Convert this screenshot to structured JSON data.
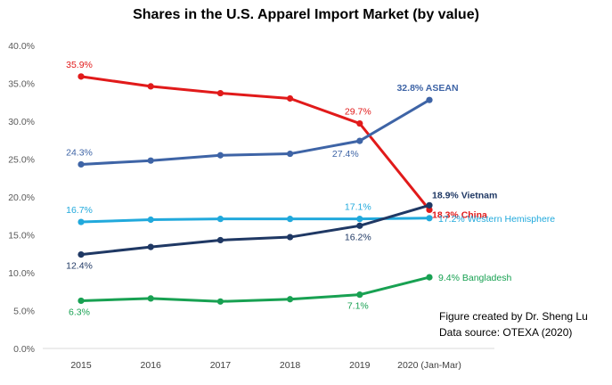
{
  "chart_data": {
    "type": "line",
    "title": "Shares in the U.S. Apparel Import Market (by value)",
    "xlabel": "",
    "ylabel": "",
    "categories": [
      "2015",
      "2016",
      "2017",
      "2018",
      "2019",
      "2020 (Jan-Mar)"
    ],
    "ylim": [
      0,
      40
    ],
    "yticks": [
      "0.0%",
      "5.0%",
      "10.0%",
      "15.0%",
      "20.0%",
      "25.0%",
      "30.0%",
      "35.0%",
      "40.0%"
    ],
    "ytick_values": [
      0,
      5,
      10,
      15,
      20,
      25,
      30,
      35,
      40
    ],
    "grid": false,
    "legend": "none (series labelled at line ends)",
    "series": [
      {
        "name": "China",
        "color": "#e11a1a",
        "values": [
          35.9,
          34.6,
          33.7,
          33.0,
          29.7,
          18.3
        ],
        "labels": [
          {
            "index": 0,
            "text": "35.9%",
            "anchor": "above"
          },
          {
            "index": 4,
            "text": "29.7%",
            "anchor": "above"
          },
          {
            "index": 5,
            "text": "18.3% China",
            "anchor": "right-below"
          }
        ]
      },
      {
        "name": "ASEAN",
        "color": "#3e64a6",
        "values": [
          24.3,
          24.8,
          25.5,
          25.7,
          27.4,
          32.8
        ],
        "labels": [
          {
            "index": 0,
            "text": "24.3%",
            "anchor": "above"
          },
          {
            "index": 4,
            "text": "27.4%",
            "anchor": "below-left"
          },
          {
            "index": 5,
            "text": "32.8% ASEAN",
            "anchor": "above"
          }
        ]
      },
      {
        "name": "Western Hemisphere",
        "color": "#21a9dc",
        "values": [
          16.7,
          17.0,
          17.1,
          17.1,
          17.1,
          17.2
        ],
        "labels": [
          {
            "index": 0,
            "text": "16.7%",
            "anchor": "above"
          },
          {
            "index": 4,
            "text": "17.1%",
            "anchor": "above"
          },
          {
            "index": 5,
            "text": "17.2% Western Hemisphere",
            "anchor": "right"
          }
        ]
      },
      {
        "name": "Vietnam",
        "color": "#1f3864",
        "values": [
          12.4,
          13.4,
          14.3,
          14.7,
          16.2,
          18.9
        ],
        "labels": [
          {
            "index": 0,
            "text": "12.4%",
            "anchor": "below"
          },
          {
            "index": 4,
            "text": "16.2%",
            "anchor": "below"
          },
          {
            "index": 5,
            "text": "18.9% Vietnam",
            "anchor": "right-above"
          }
        ]
      },
      {
        "name": "Bangladesh",
        "color": "#18a152",
        "values": [
          6.3,
          6.6,
          6.2,
          6.5,
          7.1,
          9.4
        ],
        "labels": [
          {
            "index": 0,
            "text": "6.3%",
            "anchor": "below"
          },
          {
            "index": 4,
            "text": "7.1%",
            "anchor": "below"
          },
          {
            "index": 5,
            "text": "9.4% Bangladesh",
            "anchor": "right"
          }
        ]
      }
    ]
  },
  "credits": {
    "line1": "Figure created by Dr. Sheng Lu",
    "line2": "Data source: OTEXA (2020)"
  }
}
